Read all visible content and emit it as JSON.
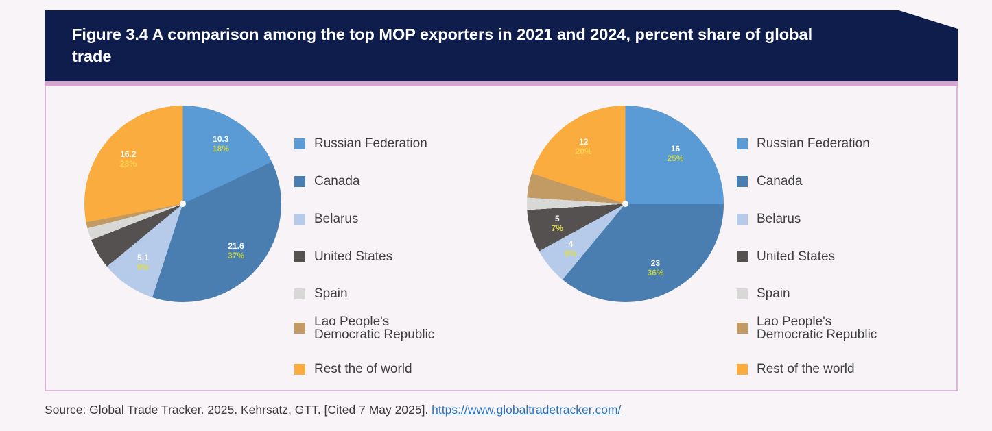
{
  "header": {
    "title": "Figure 3.4 A comparison among the top MOP exporters in 2021 and 2024, percent share of global trade"
  },
  "source": {
    "prefix": "Source: Global Trade Tracker. 2025. Kehrsatz, GTT. [Cited 7 May 2025]. ",
    "link": "https://www.globaltradetracker.com/"
  },
  "colors": {
    "header_bg": "#0F1D4D",
    "accent_bar": "#D4A6CF",
    "box_border": "#DDB5D9",
    "value_label": "#FFFFFF"
  },
  "chart_data": [
    {
      "type": "pie",
      "title": "2021",
      "legend_position": "right",
      "slices": [
        {
          "name": "Russian Federation",
          "color": "#5B9BD5",
          "share_pct": 18,
          "label_value": "10.3",
          "label_pct": "18%",
          "pct_color": "#C6D44B"
        },
        {
          "name": "Canada",
          "color": "#4A7EB0",
          "share_pct": 37,
          "label_value": "21.6",
          "label_pct": "37%",
          "pct_color": "#BCCF48"
        },
        {
          "name": "Belarus",
          "color": "#B6CBE9",
          "share_pct": 9,
          "label_value": "5.1",
          "label_pct": "9%",
          "pct_color": "#DCDC4D"
        },
        {
          "name": "United States",
          "color": "#545150",
          "share_pct": 5,
          "label_value": null,
          "label_pct": null,
          "pct_color": null
        },
        {
          "name": "Spain",
          "color": "#D8D8D6",
          "share_pct": 2,
          "label_value": null,
          "label_pct": null,
          "pct_color": null
        },
        {
          "name": "Lao People's Democratic Republic",
          "color": "#C29A63",
          "share_pct": 1,
          "label_value": null,
          "label_pct": null,
          "pct_color": null
        },
        {
          "name": "Rest the of world",
          "color": "#FAAC3E",
          "share_pct": 28,
          "label_value": "16.2",
          "label_pct": "28%",
          "pct_color": "#FFD251"
        }
      ]
    },
    {
      "type": "pie",
      "title": "2024",
      "legend_position": "right",
      "slices": [
        {
          "name": "Russian Federation",
          "color": "#5B9BD5",
          "share_pct": 25,
          "label_value": "16",
          "label_pct": "25%",
          "pct_color": "#C6D44B"
        },
        {
          "name": "Canada",
          "color": "#4A7EB0",
          "share_pct": 36,
          "label_value": "23",
          "label_pct": "36%",
          "pct_color": "#BCCF48"
        },
        {
          "name": "Belarus",
          "color": "#B6CBE9",
          "share_pct": 6,
          "label_value": "4",
          "label_pct": "6%",
          "pct_color": "#DCDC4D"
        },
        {
          "name": "United States",
          "color": "#545150",
          "share_pct": 7,
          "label_value": "5",
          "label_pct": "7%",
          "pct_color": "#DFD843"
        },
        {
          "name": "Spain",
          "color": "#D8D8D6",
          "share_pct": 2,
          "label_value": null,
          "label_pct": null,
          "pct_color": null
        },
        {
          "name": "Lao People's Democratic Republic",
          "color": "#C29A63",
          "share_pct": 4,
          "label_value": null,
          "label_pct": null,
          "pct_color": null
        },
        {
          "name": "Rest of the world",
          "color": "#FAAC3E",
          "share_pct": 20,
          "label_value": "12",
          "label_pct": "20%",
          "pct_color": "#FFD251"
        }
      ]
    }
  ]
}
